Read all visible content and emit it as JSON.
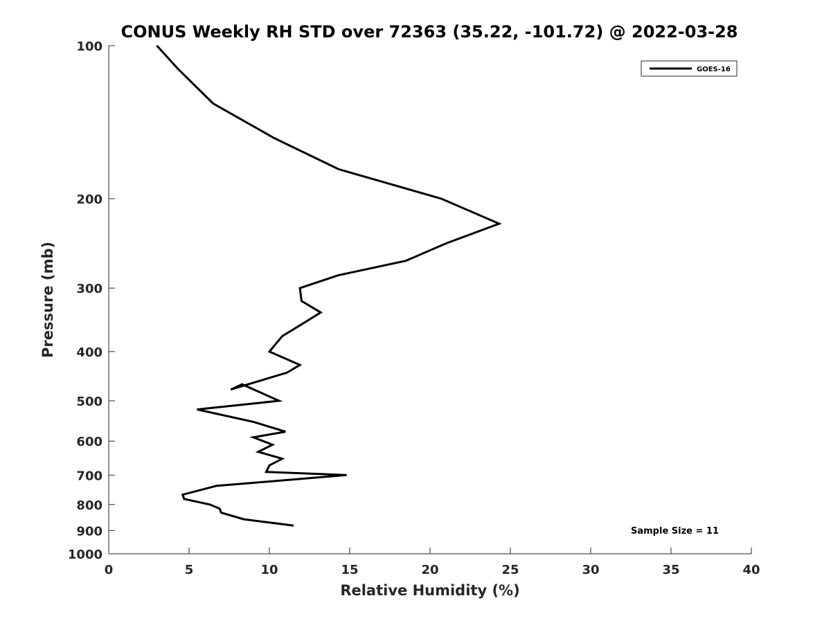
{
  "chart_data": {
    "type": "line",
    "title": "CONUS Weekly RH STD over 72363 (35.22, -101.72) @ 2022-03-28",
    "xlabel": "Relative Humidity (%)",
    "ylabel": "Pressure (mb)",
    "xlim": [
      0,
      40
    ],
    "ylim": [
      100,
      1000
    ],
    "y_scale": "log",
    "y_reversed": true,
    "grid": false,
    "legend_position": "top-right",
    "x_ticks": [
      "0",
      "5",
      "10",
      "15",
      "20",
      "25",
      "30",
      "35",
      "40"
    ],
    "y_ticks": [
      "100",
      "200",
      "300",
      "400",
      "500",
      "600",
      "700",
      "800",
      "900",
      "1000"
    ],
    "series": [
      {
        "name": "GOES-16",
        "color": "#000000",
        "x": [
          3.0,
          4.3,
          6.5,
          10.3,
          14.3,
          20.7,
          24.3,
          21.0,
          18.5,
          14.3,
          11.9,
          12.0,
          13.2,
          12.1,
          10.8,
          10.0,
          11.9,
          11.1,
          7.6,
          8.3,
          10.6,
          5.5,
          9.0,
          11.0,
          9.0,
          10.2,
          9.3,
          10.8,
          10.0,
          9.8,
          14.8,
          6.7,
          4.6,
          4.7,
          6.3,
          6.9,
          7.0,
          8.4,
          11.5
        ],
        "y": [
          100,
          111,
          130,
          152,
          175,
          200,
          224,
          245,
          265,
          283,
          300,
          318,
          335,
          352,
          373,
          400,
          425,
          440,
          475,
          464,
          500,
          520,
          550,
          575,
          590,
          610,
          630,
          650,
          670,
          690,
          700,
          735,
          765,
          780,
          800,
          815,
          830,
          855,
          880
        ]
      }
    ],
    "annotation": "Sample Size = 11"
  }
}
